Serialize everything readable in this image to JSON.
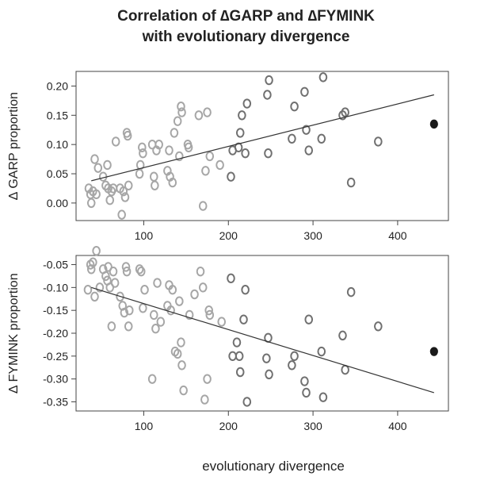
{
  "title_line1": "Correlation of ∆GARP and ∆FYMINK",
  "title_line2": "with evolutionary divergence",
  "chart_data": [
    {
      "type": "scatter",
      "ylabel": "∆ GARP proportion",
      "xlim": [
        20,
        460
      ],
      "ylim": [
        -0.03,
        0.225
      ],
      "xticks": [
        100,
        200,
        300,
        400
      ],
      "yticks": [
        0.0,
        0.05,
        0.1,
        0.15,
        0.2
      ],
      "ytick_labels": [
        "0.00",
        "0.05",
        "0.10",
        "0.15",
        "0.20"
      ],
      "colors": {
        "light": "#a6a6a6",
        "dark": "#707070",
        "highlight": "#1a1a1a",
        "line": "#333333"
      },
      "trendline": {
        "x": [
          38,
          443
        ],
        "y": [
          0.038,
          0.185
        ]
      },
      "points": [
        [
          35,
          0.025
        ],
        [
          37,
          0.015
        ],
        [
          38,
          0.0
        ],
        [
          40,
          0.02
        ],
        [
          42,
          0.075
        ],
        [
          44,
          0.015
        ],
        [
          46,
          0.06
        ],
        [
          52,
          0.045
        ],
        [
          55,
          0.03
        ],
        [
          57,
          0.065
        ],
        [
          58,
          0.025
        ],
        [
          60,
          0.005
        ],
        [
          62,
          0.02
        ],
        [
          64,
          0.025
        ],
        [
          67,
          0.105
        ],
        [
          72,
          0.025
        ],
        [
          74,
          -0.02
        ],
        [
          76,
          0.02
        ],
        [
          78,
          0.01
        ],
        [
          80,
          0.12
        ],
        [
          81,
          0.115
        ],
        [
          82,
          0.03
        ],
        [
          95,
          0.05
        ],
        [
          96,
          0.065
        ],
        [
          98,
          0.095
        ],
        [
          99,
          0.085
        ],
        [
          110,
          0.1
        ],
        [
          112,
          0.045
        ],
        [
          113,
          0.03
        ],
        [
          115,
          0.09
        ],
        [
          118,
          0.1
        ],
        [
          128,
          0.055
        ],
        [
          130,
          0.09
        ],
        [
          131,
          0.045
        ],
        [
          134,
          0.035
        ],
        [
          136,
          0.12
        ],
        [
          140,
          0.14
        ],
        [
          142,
          0.08
        ],
        [
          144,
          0.165
        ],
        [
          145,
          0.155
        ],
        [
          152,
          0.1
        ],
        [
          153,
          0.095
        ],
        [
          165,
          0.15
        ],
        [
          170,
          -0.005
        ],
        [
          173,
          0.055
        ],
        [
          175,
          0.155
        ],
        [
          178,
          0.08
        ],
        [
          190,
          0.065
        ],
        [
          203,
          0.045
        ],
        [
          205,
          0.09
        ],
        [
          212,
          0.095
        ],
        [
          214,
          0.12
        ],
        [
          216,
          0.15
        ],
        [
          220,
          0.085
        ],
        [
          222,
          0.17
        ],
        [
          246,
          0.185
        ],
        [
          247,
          0.085
        ],
        [
          248,
          0.21
        ],
        [
          275,
          0.11
        ],
        [
          278,
          0.165
        ],
        [
          290,
          0.19
        ],
        [
          292,
          0.125
        ],
        [
          295,
          0.09
        ],
        [
          310,
          0.11
        ],
        [
          312,
          0.215
        ],
        [
          335,
          0.15
        ],
        [
          338,
          0.155
        ],
        [
          345,
          0.035
        ],
        [
          377,
          0.105
        ]
      ],
      "highlight": [
        443,
        0.135
      ]
    },
    {
      "type": "scatter",
      "ylabel": "∆ FYMINK proportion",
      "xlabel": "evolutionary divergence",
      "xlim": [
        20,
        460
      ],
      "ylim": [
        -0.37,
        -0.03
      ],
      "xticks": [
        100,
        200,
        300,
        400
      ],
      "yticks": [
        -0.05,
        -0.1,
        -0.15,
        -0.2,
        -0.25,
        -0.3,
        -0.35
      ],
      "ytick_labels": [
        "-0.05",
        "-0.10",
        "-0.15",
        "-0.20",
        "-0.25",
        "-0.30",
        "-0.35"
      ],
      "colors": {
        "light": "#a6a6a6",
        "dark": "#707070",
        "highlight": "#1a1a1a",
        "line": "#333333"
      },
      "trendline": {
        "x": [
          38,
          443
        ],
        "y": [
          -0.1,
          -0.33
        ]
      },
      "points": [
        [
          34,
          -0.105
        ],
        [
          37,
          -0.05
        ],
        [
          38,
          -0.06
        ],
        [
          40,
          -0.045
        ],
        [
          42,
          -0.12
        ],
        [
          44,
          -0.02
        ],
        [
          48,
          -0.1
        ],
        [
          52,
          -0.06
        ],
        [
          55,
          -0.075
        ],
        [
          57,
          -0.085
        ],
        [
          58,
          -0.055
        ],
        [
          60,
          -0.1
        ],
        [
          62,
          -0.185
        ],
        [
          64,
          -0.065
        ],
        [
          66,
          -0.09
        ],
        [
          72,
          -0.12
        ],
        [
          75,
          -0.14
        ],
        [
          77,
          -0.155
        ],
        [
          79,
          -0.055
        ],
        [
          80,
          -0.065
        ],
        [
          82,
          -0.185
        ],
        [
          83,
          -0.15
        ],
        [
          95,
          -0.06
        ],
        [
          97,
          -0.065
        ],
        [
          99,
          -0.145
        ],
        [
          101,
          -0.105
        ],
        [
          110,
          -0.3
        ],
        [
          112,
          -0.16
        ],
        [
          114,
          -0.19
        ],
        [
          116,
          -0.09
        ],
        [
          120,
          -0.175
        ],
        [
          128,
          -0.14
        ],
        [
          130,
          -0.095
        ],
        [
          132,
          -0.15
        ],
        [
          134,
          -0.105
        ],
        [
          137,
          -0.24
        ],
        [
          140,
          -0.245
        ],
        [
          142,
          -0.13
        ],
        [
          144,
          -0.22
        ],
        [
          145,
          -0.27
        ],
        [
          147,
          -0.325
        ],
        [
          154,
          -0.16
        ],
        [
          160,
          -0.115
        ],
        [
          167,
          -0.065
        ],
        [
          170,
          -0.1
        ],
        [
          172,
          -0.345
        ],
        [
          175,
          -0.3
        ],
        [
          177,
          -0.15
        ],
        [
          178,
          -0.16
        ],
        [
          192,
          -0.175
        ],
        [
          203,
          -0.08
        ],
        [
          205,
          -0.25
        ],
        [
          210,
          -0.22
        ],
        [
          213,
          -0.25
        ],
        [
          214,
          -0.285
        ],
        [
          218,
          -0.17
        ],
        [
          220,
          -0.105
        ],
        [
          222,
          -0.35
        ],
        [
          245,
          -0.255
        ],
        [
          247,
          -0.21
        ],
        [
          248,
          -0.29
        ],
        [
          275,
          -0.27
        ],
        [
          278,
          -0.25
        ],
        [
          290,
          -0.305
        ],
        [
          292,
          -0.33
        ],
        [
          295,
          -0.17
        ],
        [
          310,
          -0.24
        ],
        [
          312,
          -0.34
        ],
        [
          335,
          -0.205
        ],
        [
          338,
          -0.28
        ],
        [
          345,
          -0.11
        ],
        [
          377,
          -0.185
        ]
      ],
      "highlight": [
        443,
        -0.24
      ]
    }
  ]
}
